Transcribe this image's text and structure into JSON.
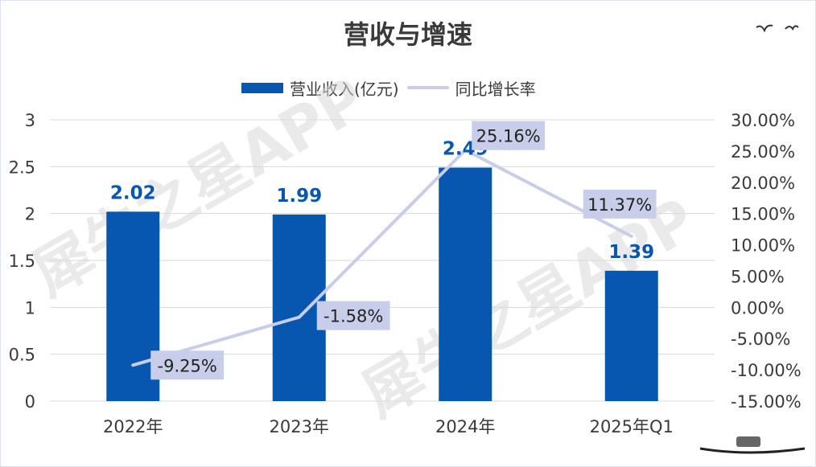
{
  "title": "营收与增速",
  "watermark": "犀牛之星APP",
  "legend": {
    "bar_label": "营业收入(亿元)",
    "line_label": "同比增长率"
  },
  "colors": {
    "bar": "#0757b0",
    "line": "#c8cde9",
    "rate_label_bg": "#c8cde9",
    "grid": "#d9d9d9"
  },
  "chart_data": {
    "type": "bar+line",
    "categories": [
      "2022年",
      "2023年",
      "2024年",
      "2025年Q1"
    ],
    "series": [
      {
        "name": "营业收入(亿元)",
        "type": "bar",
        "axis": "left",
        "values": [
          2.02,
          1.99,
          2.49,
          1.39
        ],
        "labels": [
          "2.02",
          "1.99",
          "2.49",
          "1.39"
        ]
      },
      {
        "name": "同比增长率",
        "type": "line",
        "axis": "right",
        "values": [
          -9.25,
          -1.58,
          25.16,
          11.37
        ],
        "labels": [
          "-9.25%",
          "-1.58%",
          "25.16%",
          "11.37%"
        ]
      }
    ],
    "left_axis": {
      "range": [
        0,
        3
      ],
      "ticks": [
        "0",
        "0.5",
        "1",
        "1.5",
        "2",
        "2.5",
        "3"
      ]
    },
    "right_axis": {
      "range": [
        -15,
        30
      ],
      "ticks": [
        "-15.00%",
        "-10.00%",
        "-5.00%",
        "0.00%",
        "5.00%",
        "10.00%",
        "15.00%",
        "20.00%",
        "25.00%",
        "30.00%"
      ]
    },
    "grid": true,
    "legend_position": "top"
  }
}
